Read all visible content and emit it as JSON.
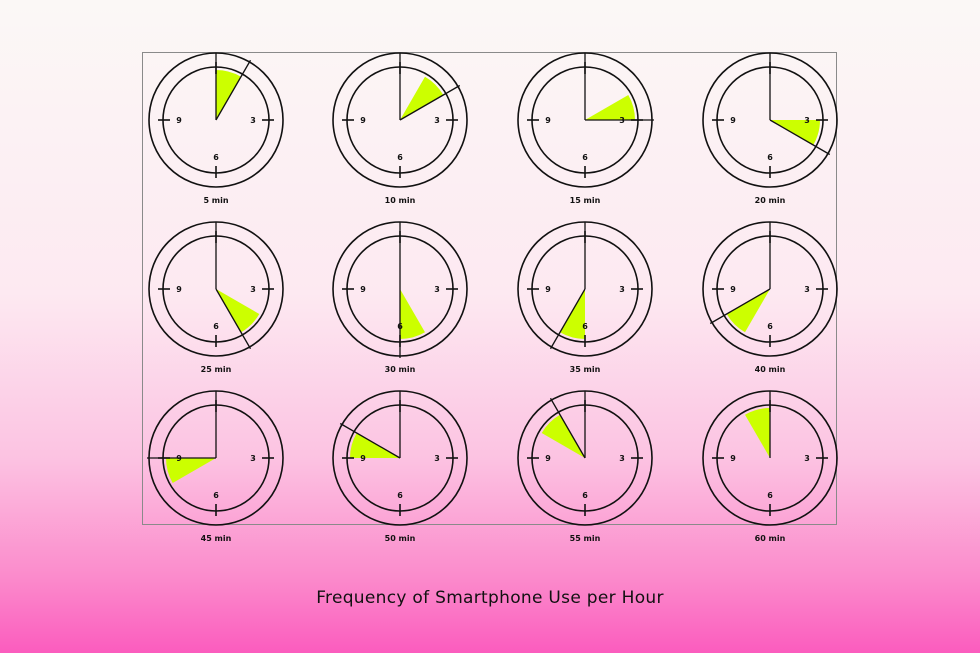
{
  "title": "Frequency of Smartphone Use per Hour",
  "accent_color": "#ccff00",
  "dial_labels": [
    "3",
    "6",
    "9"
  ],
  "clocks": [
    {
      "label": "5 min",
      "minutes": 5
    },
    {
      "label": "10 min",
      "minutes": 10
    },
    {
      "label": "15 min",
      "minutes": 15
    },
    {
      "label": "20 min",
      "minutes": 20
    },
    {
      "label": "25 min",
      "minutes": 25
    },
    {
      "label": "30 min",
      "minutes": 30
    },
    {
      "label": "35 min",
      "minutes": 35
    },
    {
      "label": "40 min",
      "minutes": 40
    },
    {
      "label": "45 min",
      "minutes": 45
    },
    {
      "label": "50 min",
      "minutes": 50
    },
    {
      "label": "55 min",
      "minutes": 55
    },
    {
      "label": "60 min",
      "minutes": 60
    }
  ]
}
